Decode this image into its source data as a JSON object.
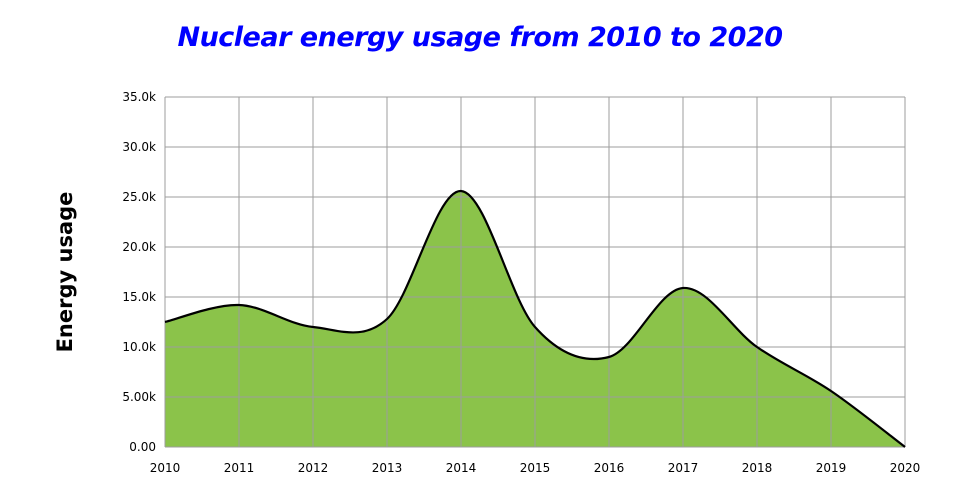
{
  "chart_data": {
    "type": "area",
    "title": "Nuclear energy usage from 2010 to 2020",
    "xlabel": "",
    "ylabel": "Energy usage",
    "x": [
      2010,
      2011,
      2012,
      2013,
      2014,
      2015,
      2016,
      2017,
      2018,
      2019,
      2020
    ],
    "x_tick_labels": [
      "2010",
      "2011",
      "2012",
      "2013",
      "2014",
      "2015",
      "2016",
      "2017",
      "2018",
      "2019",
      "2020"
    ],
    "y": [
      12500,
      14200,
      12000,
      12800,
      25600,
      12000,
      9000,
      15900,
      10000,
      5600,
      0
    ],
    "ylim": [
      0,
      35000
    ],
    "y_ticks": [
      0,
      5000,
      10000,
      15000,
      20000,
      25000,
      30000,
      35000
    ],
    "y_tick_labels": [
      "0.00",
      "5.00k",
      "10.0k",
      "15.0k",
      "20.0k",
      "25.0k",
      "30.0k",
      "35.0k"
    ],
    "grid": true,
    "fill_color": "#8bc34a",
    "line_color": "#000000",
    "title_color": "#0000ff"
  }
}
